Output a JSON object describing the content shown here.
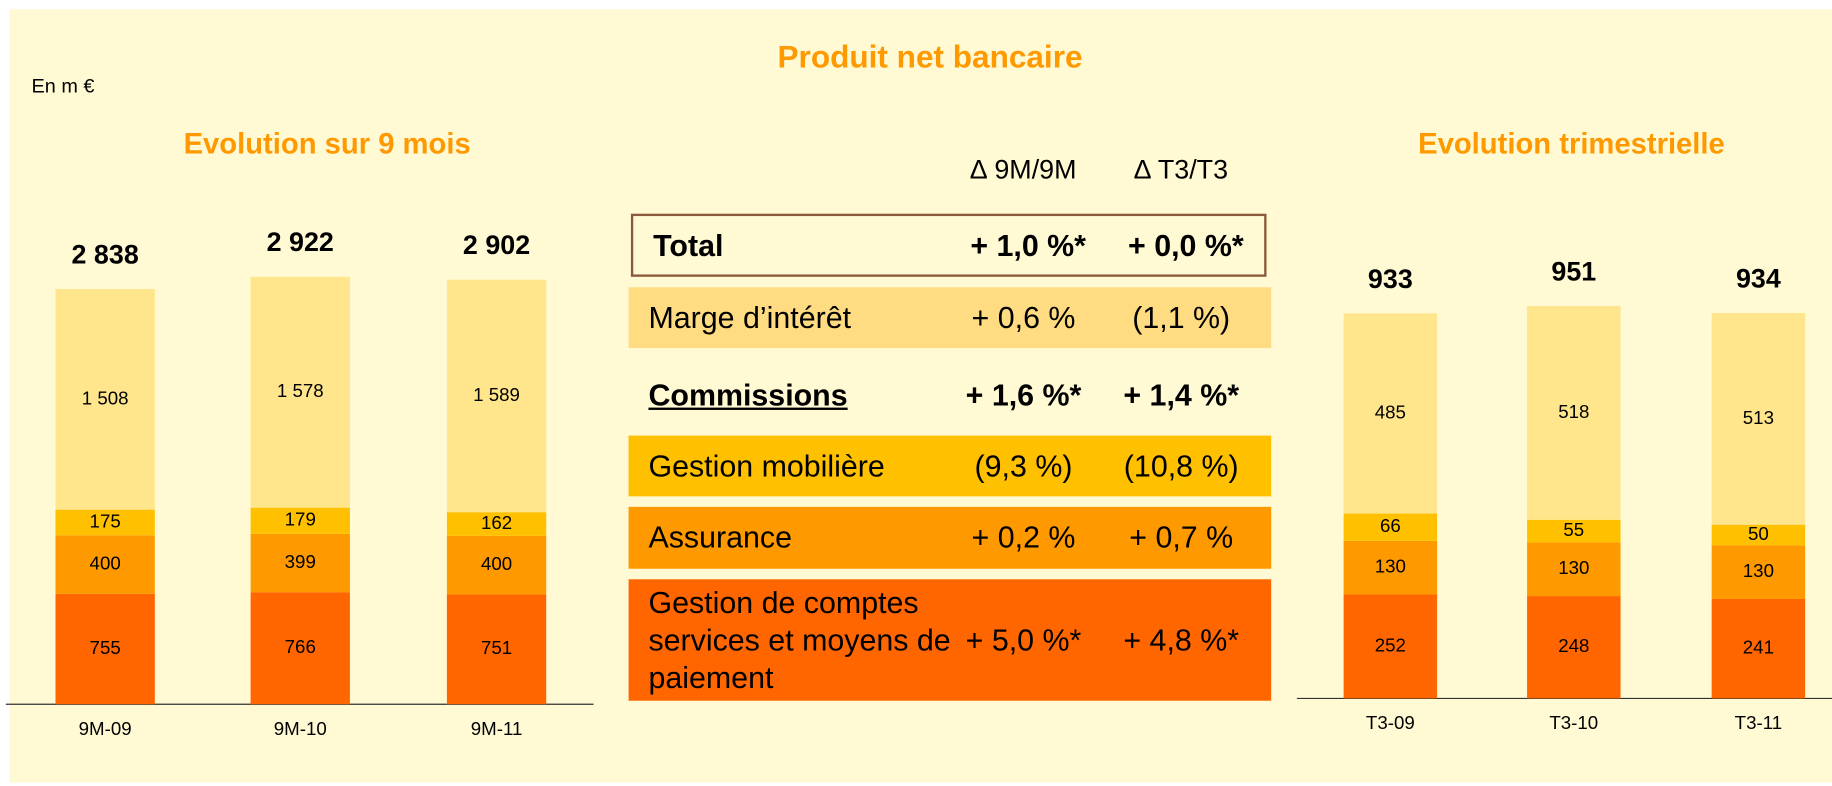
{
  "title": "Produit net bancaire",
  "note": "En m €",
  "chart_data": [
    {
      "type": "stacked_bar",
      "title": "Evolution sur 9 mois",
      "categories": [
        "9M-09",
        "9M-10",
        "9M-11"
      ],
      "series": [
        {
          "color": "#FF6600",
          "values": [
            755,
            766,
            751
          ]
        },
        {
          "color": "#FF9900",
          "values": [
            400,
            399,
            400
          ]
        },
        {
          "color": "#FFC000",
          "values": [
            175,
            179,
            162
          ]
        },
        {
          "color": "#FFE68C",
          "values": [
            1508,
            1578,
            1589
          ],
          "value_labels": [
            "1 508",
            "1 578",
            "1 589"
          ]
        }
      ],
      "totals": [
        2838,
        2922,
        2902
      ],
      "total_labels": [
        "2 838",
        "2 922",
        "2 902"
      ]
    },
    {
      "type": "stacked_bar",
      "title": "Evolution trimestrielle",
      "categories": [
        "T3-09",
        "T3-10",
        "T3-11"
      ],
      "series": [
        {
          "color": "#FF6600",
          "values": [
            252,
            248,
            241
          ]
        },
        {
          "color": "#FF9900",
          "values": [
            130,
            130,
            130
          ]
        },
        {
          "color": "#FFC000",
          "values": [
            66,
            55,
            50
          ]
        },
        {
          "color": "#FFE68C",
          "values": [
            485,
            518,
            513
          ]
        }
      ],
      "totals": [
        933,
        951,
        934
      ]
    }
  ],
  "table": {
    "header": [
      "∆  9M/9M",
      "∆  T3/T3"
    ],
    "rows": [
      [
        "Total",
        "+ 1,0 %*",
        "+ 0,0 %*"
      ],
      [
        "Marge d’intérêt",
        "+ 0,6 %",
        "(1,1 %)"
      ],
      [
        "Commissions",
        "+ 1,6 %*",
        "+ 1,4 %*"
      ],
      [
        "Gestion mobilière",
        "(9,3 %)",
        "(10,8 %)"
      ],
      [
        "Assurance",
        "+ 0,2 %",
        "+ 0,7 %"
      ],
      [
        "Gestion de comptes services et moyens de paiement",
        "+ 5,0 %*",
        "+ 4,8 %*"
      ]
    ]
  }
}
